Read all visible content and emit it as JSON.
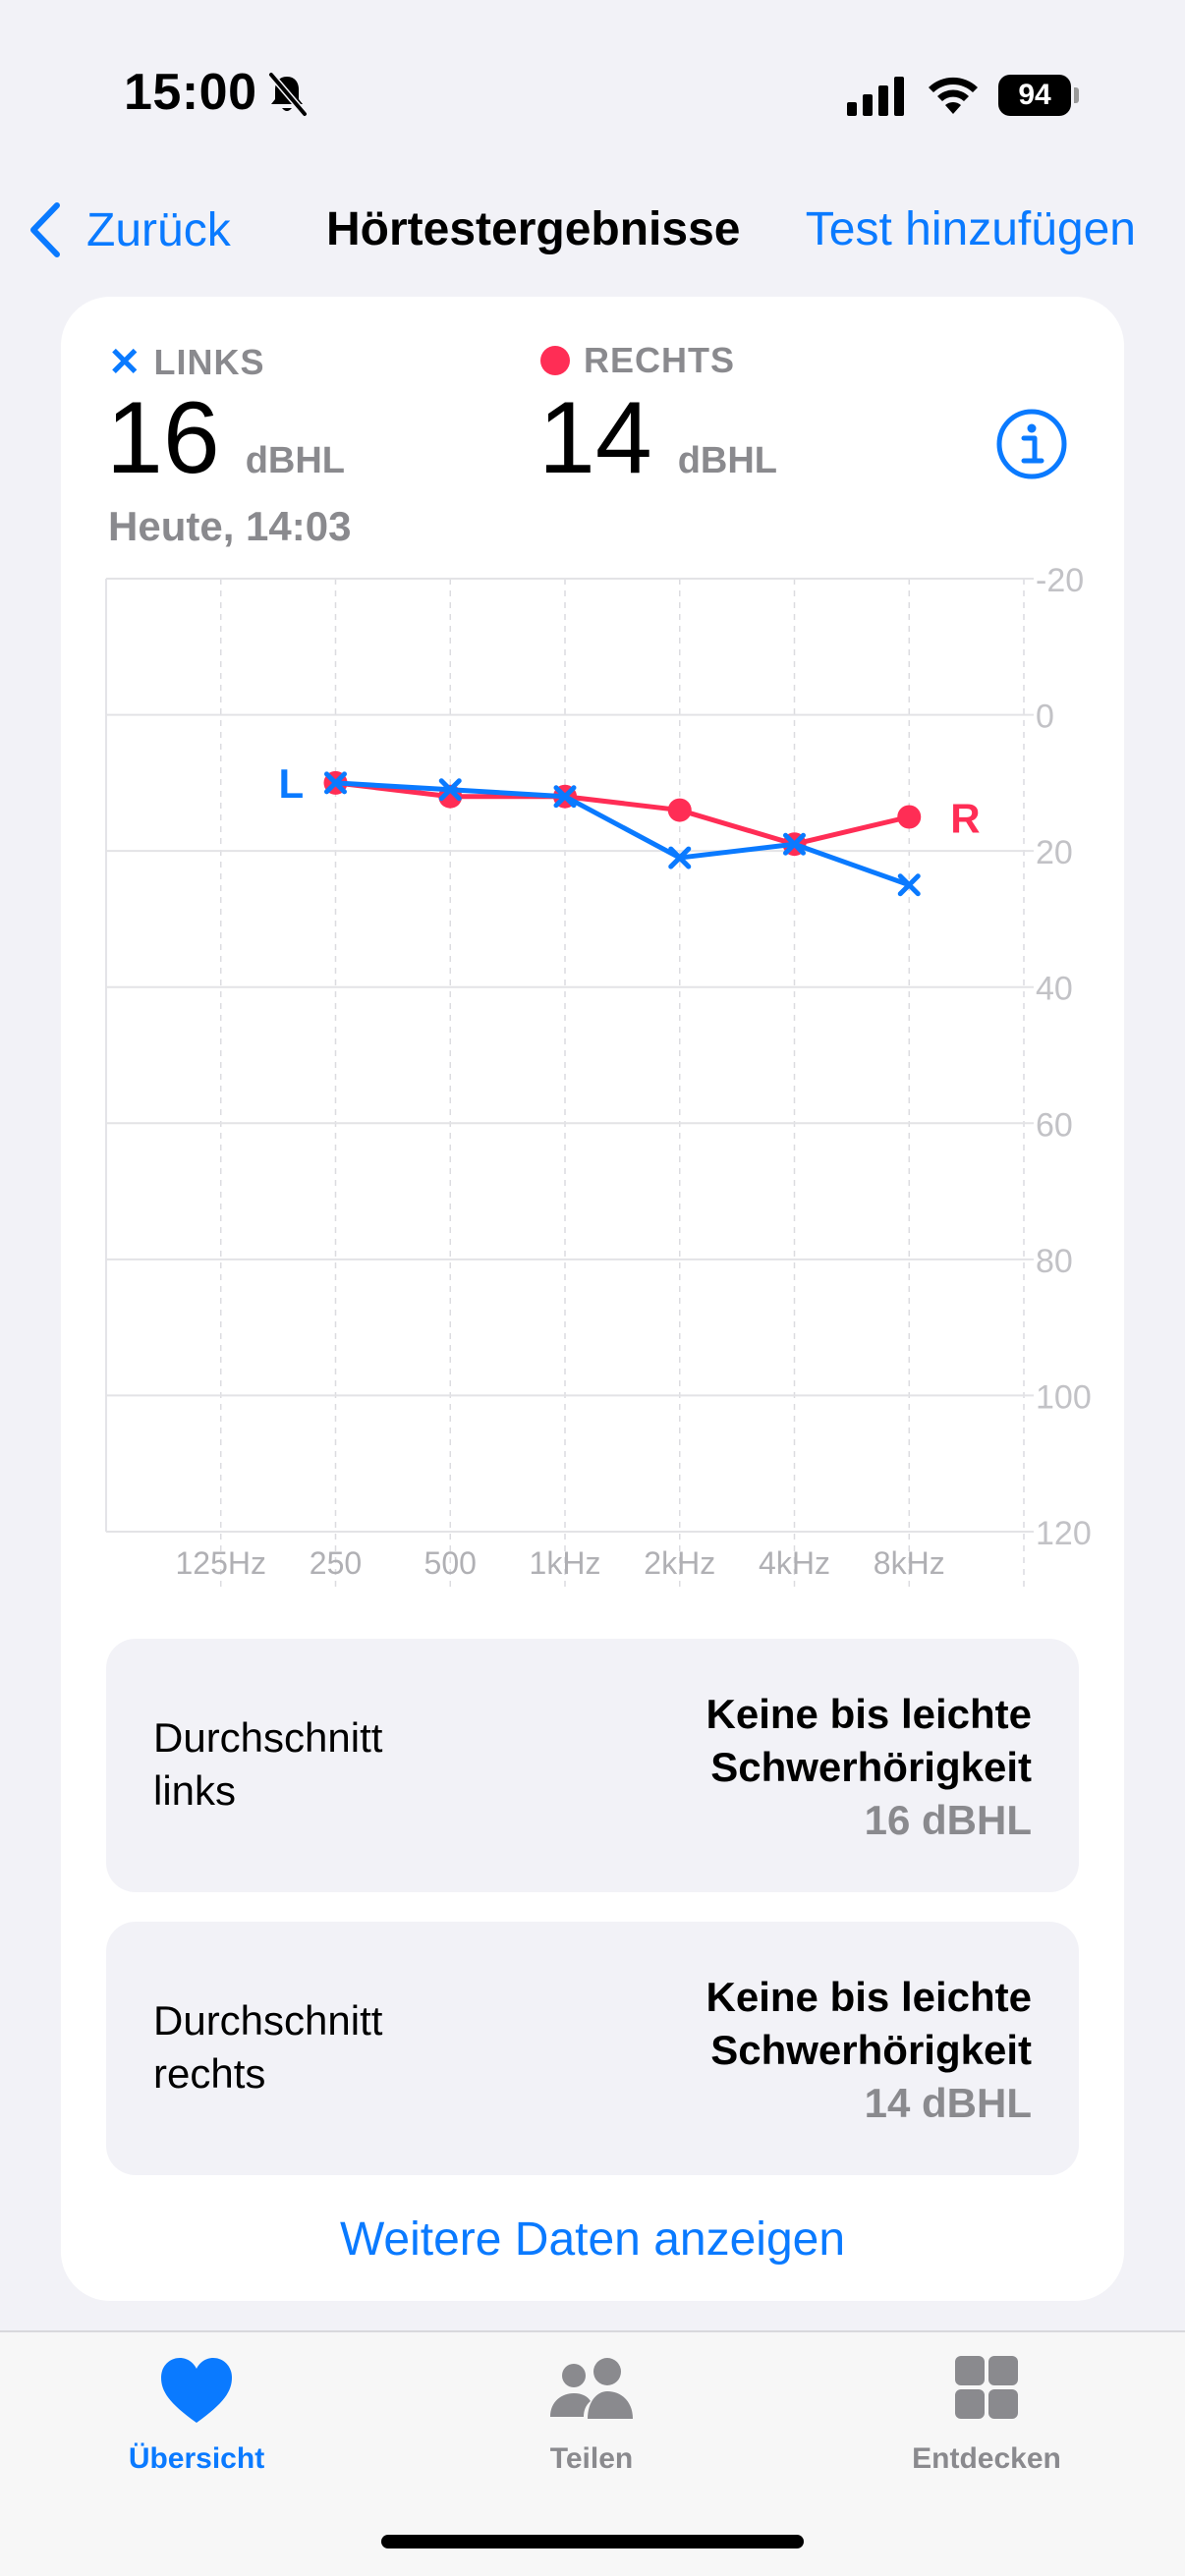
{
  "status": {
    "time": "15:00",
    "battery": "94"
  },
  "nav": {
    "back_label": "Zurück",
    "title": "Hörtestergebnisse",
    "action_label": "Test hinzufügen"
  },
  "left_ear": {
    "label": "LINKS",
    "value": "16",
    "unit": "dBHL"
  },
  "right_ear": {
    "label": "RECHTS",
    "value": "14",
    "unit": "dBHL"
  },
  "date": "Heute, 14:03",
  "chart_data": {
    "type": "line",
    "categories": [
      "125Hz",
      "250",
      "500",
      "1kHz",
      "2kHz",
      "4kHz",
      "8kHz"
    ],
    "y_ticks": [
      "-20",
      "0",
      "20",
      "40",
      "60",
      "80",
      "100",
      "120"
    ],
    "ylim": [
      -20,
      120
    ],
    "y_inverted": true,
    "grid": true,
    "series": [
      {
        "name": "L",
        "color": "#0a7aff",
        "marker": "x",
        "values": [
          null,
          10,
          11,
          12,
          21,
          19,
          25
        ]
      },
      {
        "name": "R",
        "color": "#ff2d55",
        "marker": "dot",
        "values": [
          null,
          10,
          12,
          12,
          14,
          19,
          15
        ]
      }
    ]
  },
  "summaries": [
    {
      "label": "Durchschnitt links",
      "classification": "Keine bis leichte Schwerhörigkeit",
      "value": "16 dBHL"
    },
    {
      "label": "Durchschnitt rechts",
      "classification": "Keine bis leichte Schwerhörigkeit",
      "value": "14 dBHL"
    }
  ],
  "more_link": "Weitere Daten anzeigen",
  "tabs": [
    {
      "label": "Übersicht",
      "icon": "heart-icon"
    },
    {
      "label": "Teilen",
      "icon": "people-icon"
    },
    {
      "label": "Entdecken",
      "icon": "grid-icon"
    }
  ],
  "colors": {
    "accent": "#0a7aff",
    "right": "#ff2d55",
    "secondary": "#8a8a8e",
    "background": "#f2f2f7"
  }
}
